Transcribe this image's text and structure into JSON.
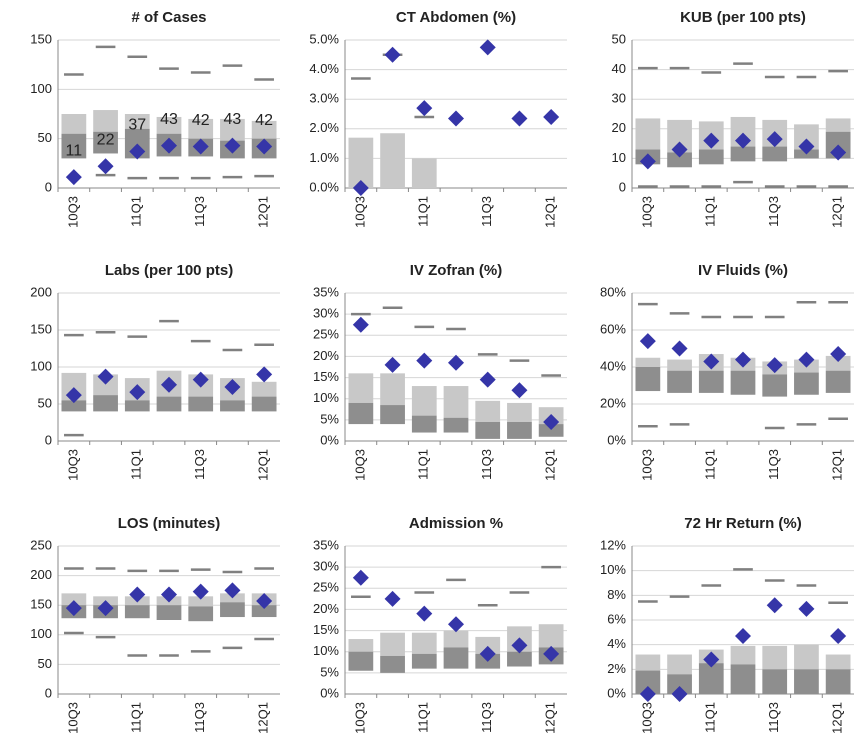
{
  "chart_data": [
    {
      "type": "box",
      "title": "# of Cases",
      "categories": [
        "10Q3",
        null,
        "11Q1",
        null,
        "11Q3",
        null,
        "12Q1"
      ],
      "values": [
        11,
        22,
        37,
        43,
        42,
        43,
        42
      ],
      "show_values": true,
      "max": [
        115,
        143,
        133,
        121,
        117,
        124,
        110
      ],
      "min": [
        null,
        13,
        10,
        10,
        10,
        11,
        12
      ],
      "q3": [
        75,
        79,
        75,
        72,
        70,
        70,
        68
      ],
      "median": [
        55,
        57,
        60,
        55,
        50,
        48,
        50
      ],
      "q1": [
        30,
        35,
        30,
        32,
        32,
        30,
        30
      ],
      "ylim": [
        0,
        150
      ],
      "yticks": [
        0,
        50,
        100,
        150
      ]
    },
    {
      "type": "box",
      "title": "CT Abdomen (%)",
      "categories": [
        "10Q3",
        null,
        "11Q1",
        null,
        "11Q3",
        null,
        "12Q1"
      ],
      "values": [
        0,
        4.5,
        2.7,
        2.35,
        4.75,
        2.35,
        2.4
      ],
      "max": [
        3.7,
        4.5,
        2.4,
        null,
        null,
        null,
        null
      ],
      "min": [
        null,
        null,
        null,
        null,
        null,
        null,
        null
      ],
      "q3": [
        1.7,
        1.85,
        1.0,
        0,
        0,
        0,
        0
      ],
      "median": [
        0,
        0,
        0,
        0,
        0,
        0,
        0
      ],
      "q1": [
        0,
        0,
        0,
        0,
        0,
        0,
        0
      ],
      "ylim": [
        0,
        5
      ],
      "yticks": [
        {
          "value": 0,
          "label": "0.0%"
        },
        {
          "value": 1,
          "label": "1.0%"
        },
        {
          "value": 2,
          "label": "2.0%"
        },
        {
          "value": 3,
          "label": "3.0%"
        },
        {
          "value": 4,
          "label": "4.0%"
        },
        {
          "value": 5,
          "label": "5.0%"
        }
      ]
    },
    {
      "type": "box",
      "title": "KUB (per 100 pts)",
      "categories": [
        "10Q3",
        null,
        "11Q1",
        null,
        "11Q3",
        null,
        "12Q1"
      ],
      "values": [
        9,
        13,
        16,
        16,
        16.5,
        14,
        12
      ],
      "max": [
        40.5,
        40.5,
        39,
        42,
        37.5,
        37.5,
        39.5
      ],
      "min": [
        0.5,
        0.5,
        0.5,
        2,
        0.5,
        0.5,
        0.5
      ],
      "q3": [
        23.5,
        23,
        22.5,
        24,
        23,
        21.5,
        23.5
      ],
      "median": [
        13,
        12,
        13,
        14,
        14,
        13,
        19
      ],
      "q1": [
        8,
        7,
        8,
        9,
        9,
        10,
        10
      ],
      "ylim": [
        0,
        50
      ],
      "yticks": [
        0,
        10,
        20,
        30,
        40,
        50
      ]
    },
    {
      "type": "box",
      "title": "Labs (per 100 pts)",
      "categories": [
        "10Q3",
        null,
        "11Q1",
        null,
        "11Q3",
        null,
        "12Q1"
      ],
      "values": [
        62,
        87,
        66,
        76,
        83,
        73,
        90
      ],
      "max": [
        143,
        147,
        141,
        162,
        135,
        123,
        130
      ],
      "min": [
        8,
        null,
        null,
        null,
        null,
        null,
        null
      ],
      "q3": [
        92,
        90,
        85,
        95,
        90,
        85,
        80
      ],
      "median": [
        55,
        62,
        55,
        60,
        60,
        55,
        60
      ],
      "q1": [
        40,
        40,
        40,
        40,
        40,
        40,
        40
      ],
      "ylim": [
        0,
        200
      ],
      "yticks": [
        0,
        50,
        100,
        150,
        200
      ]
    },
    {
      "type": "box",
      "title": "IV Zofran (%)",
      "categories": [
        "10Q3",
        null,
        "11Q1",
        null,
        "11Q3",
        null,
        "12Q1"
      ],
      "values": [
        27.5,
        18,
        19,
        18.5,
        14.5,
        12,
        4.5
      ],
      "max": [
        30,
        31.5,
        27,
        26.5,
        20.5,
        19,
        15.5
      ],
      "min": [
        null,
        null,
        null,
        null,
        null,
        null,
        null
      ],
      "q3": [
        16,
        16,
        13,
        13,
        9.5,
        9,
        8
      ],
      "median": [
        9,
        8.5,
        6,
        5.5,
        4.5,
        4.5,
        4
      ],
      "q1": [
        4,
        4,
        2,
        2,
        0.5,
        0.5,
        1
      ],
      "ylim": [
        0,
        35
      ],
      "yticks": [
        {
          "value": 0,
          "label": "0%"
        },
        {
          "value": 5,
          "label": "5%"
        },
        {
          "value": 10,
          "label": "10%"
        },
        {
          "value": 15,
          "label": "15%"
        },
        {
          "value": 20,
          "label": "20%"
        },
        {
          "value": 25,
          "label": "25%"
        },
        {
          "value": 30,
          "label": "30%"
        },
        {
          "value": 35,
          "label": "35%"
        }
      ]
    },
    {
      "type": "box",
      "title": "IV Fluids (%)",
      "categories": [
        "10Q3",
        null,
        "11Q1",
        null,
        "11Q3",
        null,
        "12Q1"
      ],
      "values": [
        54,
        50,
        43,
        44,
        41,
        44,
        47
      ],
      "max": [
        74,
        69,
        67,
        67,
        67,
        75,
        75
      ],
      "min": [
        8,
        9,
        null,
        null,
        7,
        9,
        12
      ],
      "q3": [
        45,
        44,
        47,
        45,
        43,
        44,
        46
      ],
      "median": [
        40,
        38,
        38,
        38,
        36,
        37,
        38
      ],
      "q1": [
        27,
        26,
        26,
        25,
        24,
        25,
        26
      ],
      "ylim": [
        0,
        80
      ],
      "yticks": [
        {
          "value": 0,
          "label": "0%"
        },
        {
          "value": 20,
          "label": "20%"
        },
        {
          "value": 40,
          "label": "40%"
        },
        {
          "value": 60,
          "label": "60%"
        },
        {
          "value": 80,
          "label": "80%"
        }
      ]
    },
    {
      "type": "box",
      "title": "LOS (minutes)",
      "categories": [
        "10Q3",
        null,
        "11Q1",
        null,
        "11Q3",
        null,
        "12Q1"
      ],
      "values": [
        145,
        145,
        168,
        168,
        173,
        175,
        157
      ],
      "max": [
        212,
        212,
        208,
        208,
        210,
        206,
        212
      ],
      "min": [
        103,
        96,
        65,
        65,
        72,
        78,
        93
      ],
      "q3": [
        170,
        165,
        165,
        165,
        165,
        170,
        170
      ],
      "median": [
        150,
        150,
        150,
        150,
        148,
        155,
        150
      ],
      "q1": [
        128,
        128,
        128,
        125,
        123,
        130,
        130
      ],
      "ylim": [
        0,
        250
      ],
      "yticks": [
        0,
        50,
        100,
        150,
        200,
        250
      ]
    },
    {
      "type": "box",
      "title": "Admission %",
      "categories": [
        "10Q3",
        null,
        "11Q1",
        null,
        "11Q3",
        null,
        "12Q1"
      ],
      "values": [
        27.5,
        22.5,
        19,
        16.5,
        9.5,
        11.5,
        9.5
      ],
      "max": [
        23,
        null,
        24,
        27,
        21,
        24,
        30
      ],
      "min": [
        null,
        null,
        null,
        null,
        null,
        null,
        null
      ],
      "q3": [
        13,
        14.5,
        14.5,
        15,
        13.5,
        16,
        16.5
      ],
      "median": [
        10,
        9,
        9.5,
        11,
        9.5,
        10,
        11
      ],
      "q1": [
        5.5,
        5,
        6,
        6,
        6,
        6.5,
        7
      ],
      "ylim": [
        0,
        35
      ],
      "yticks": [
        {
          "value": 0,
          "label": "0%"
        },
        {
          "value": 5,
          "label": "5%"
        },
        {
          "value": 10,
          "label": "10%"
        },
        {
          "value": 15,
          "label": "15%"
        },
        {
          "value": 20,
          "label": "20%"
        },
        {
          "value": 25,
          "label": "25%"
        },
        {
          "value": 30,
          "label": "30%"
        },
        {
          "value": 35,
          "label": "35%"
        }
      ]
    },
    {
      "type": "box",
      "title": "72 Hr Return (%)",
      "categories": [
        "10Q3",
        null,
        "11Q1",
        null,
        "11Q3",
        null,
        "12Q1"
      ],
      "values": [
        0,
        0,
        2.8,
        4.7,
        7.2,
        6.9,
        4.7
      ],
      "max": [
        7.5,
        7.9,
        8.8,
        10.1,
        9.2,
        8.8,
        7.4
      ],
      "min": [
        null,
        null,
        null,
        null,
        null,
        null,
        null
      ],
      "q3": [
        3.2,
        3.2,
        3.6,
        3.9,
        3.9,
        4.0,
        3.2
      ],
      "median": [
        1.9,
        1.6,
        2.5,
        2.4,
        2.0,
        2.0,
        2.0
      ],
      "q1": [
        0,
        0,
        0,
        0,
        0,
        0,
        0
      ],
      "ylim": [
        0,
        12
      ],
      "yticks": [
        {
          "value": 0,
          "label": "0%"
        },
        {
          "value": 2,
          "label": "2%"
        },
        {
          "value": 4,
          "label": "4%"
        },
        {
          "value": 6,
          "label": "6%"
        },
        {
          "value": 8,
          "label": "8%"
        },
        {
          "value": 10,
          "label": "10%"
        },
        {
          "value": 12,
          "label": "12%"
        }
      ]
    }
  ],
  "style": {
    "color": "#3535a8",
    "upper_box_color": "#c8c8c8",
    "lower_box_color": "#8e8e8e",
    "whisker_color": "#808080",
    "grid": true
  }
}
